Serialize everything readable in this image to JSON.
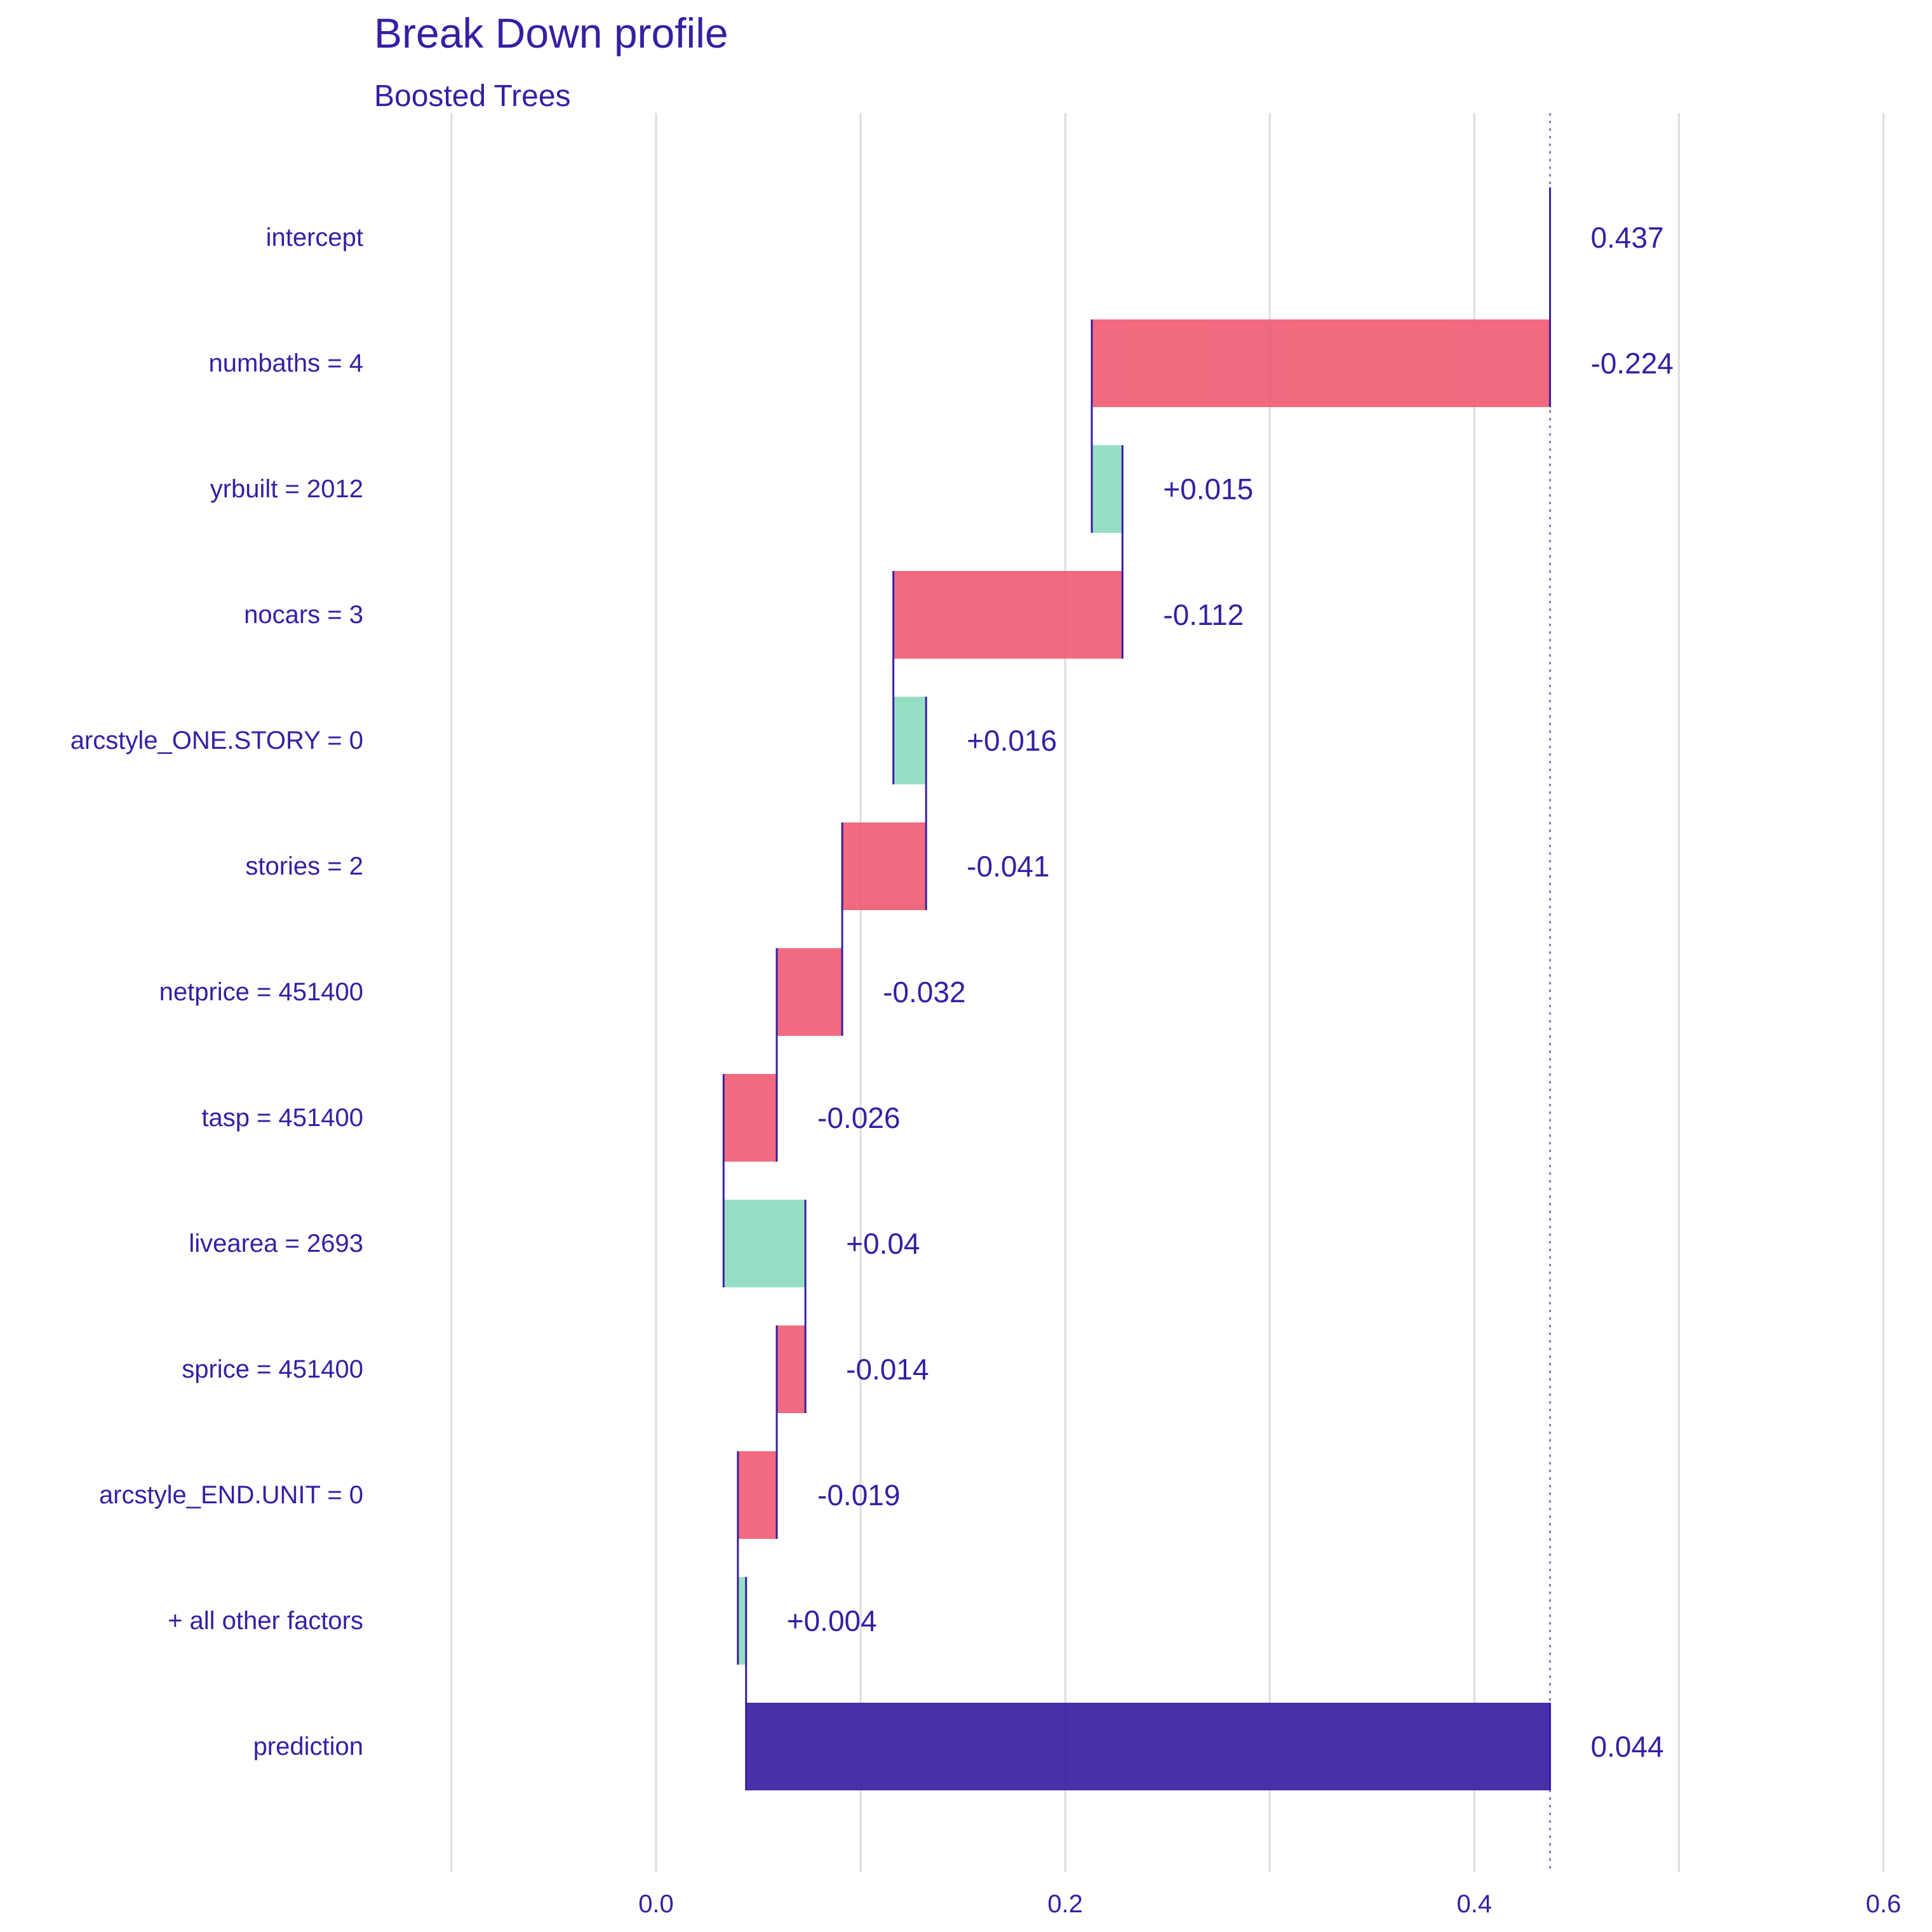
{
  "chart_data": {
    "type": "bar",
    "title": "Break Down profile",
    "subtitle": "Boosted Trees",
    "xlabel": "",
    "ylabel": "",
    "xlim": [
      -0.2,
      0.6
    ],
    "x_ticks": [
      0.0,
      0.2,
      0.4,
      0.6
    ],
    "x_tick_labels": [
      "0.0",
      "0.2",
      "0.4",
      "0.6"
    ],
    "grid_lines": [
      -0.1,
      0.0,
      0.1,
      0.2,
      0.3,
      0.4,
      0.5,
      0.6
    ],
    "grid": true,
    "reference_line": 0.437,
    "colors": {
      "positive": "#8bdcbe",
      "negative": "#f05a71",
      "prediction": "#371ea3",
      "text": "#371ea3",
      "grid": "#dddddd"
    },
    "rows": [
      {
        "label": "intercept",
        "start": 0.437,
        "end": 0.437,
        "value_label": "0.437",
        "kind": "intercept"
      },
      {
        "label": "numbaths = 4",
        "start": 0.437,
        "end": 0.213,
        "value_label": "-0.224",
        "kind": "negative"
      },
      {
        "label": "yrbuilt = 2012",
        "start": 0.213,
        "end": 0.228,
        "value_label": "+0.015",
        "kind": "positive"
      },
      {
        "label": "nocars = 3",
        "start": 0.228,
        "end": 0.116,
        "value_label": "-0.112",
        "kind": "negative"
      },
      {
        "label": "arcstyle_ONE.STORY = 0",
        "start": 0.116,
        "end": 0.132,
        "value_label": "+0.016",
        "kind": "positive"
      },
      {
        "label": "stories = 2",
        "start": 0.132,
        "end": 0.091,
        "value_label": "-0.041",
        "kind": "negative"
      },
      {
        "label": "netprice = 451400",
        "start": 0.091,
        "end": 0.059,
        "value_label": "-0.032",
        "kind": "negative"
      },
      {
        "label": "tasp = 451400",
        "start": 0.059,
        "end": 0.033,
        "value_label": "-0.026",
        "kind": "negative"
      },
      {
        "label": "livearea = 2693",
        "start": 0.033,
        "end": 0.073,
        "value_label": "+0.04",
        "kind": "positive"
      },
      {
        "label": "sprice = 451400",
        "start": 0.073,
        "end": 0.059,
        "value_label": "-0.014",
        "kind": "negative"
      },
      {
        "label": "arcstyle_END.UNIT = 0",
        "start": 0.059,
        "end": 0.04,
        "value_label": "-0.019",
        "kind": "negative"
      },
      {
        "label": "+ all other factors",
        "start": 0.04,
        "end": 0.044,
        "value_label": "+0.004",
        "kind": "positive"
      },
      {
        "label": "prediction",
        "start": 0.044,
        "end": 0.437,
        "value_label": "0.044",
        "kind": "prediction"
      }
    ]
  }
}
